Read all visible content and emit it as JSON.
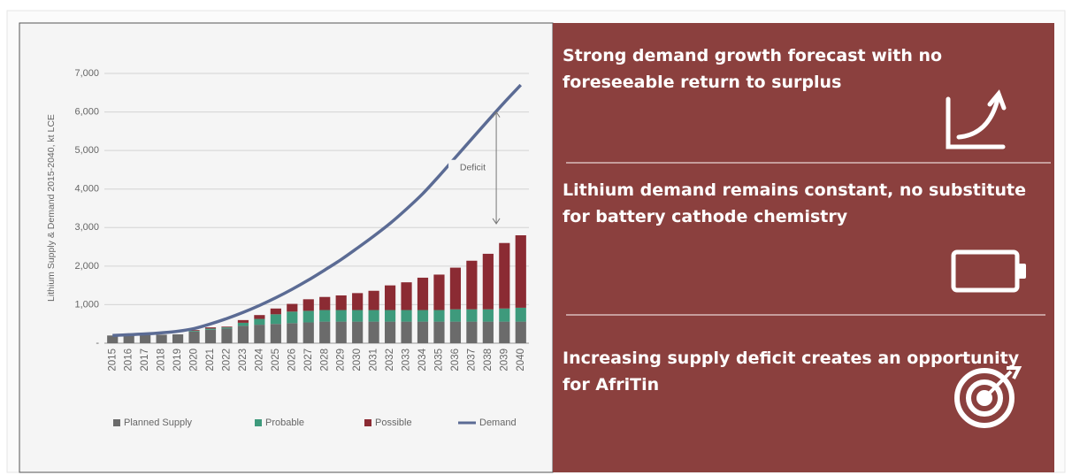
{
  "chart_data": {
    "type": "bar",
    "stacked": true,
    "y_label": "Lithium Supply & Demand 2015-2040, kt LCE",
    "categories": [
      "2015",
      "2016",
      "2017",
      "2018",
      "2019",
      "2020",
      "2021",
      "2022",
      "2023",
      "2024",
      "2025",
      "2026",
      "2027",
      "2028",
      "2029",
      "2030",
      "2031",
      "2032",
      "2033",
      "2034",
      "2035",
      "2036",
      "2037",
      "2038",
      "2039",
      "2040"
    ],
    "series": [
      {
        "name": "Planned Supply",
        "color": "#6b6b6b",
        "values": [
          200,
          200,
          210,
          220,
          230,
          300,
          350,
          380,
          450,
          480,
          500,
          520,
          540,
          560,
          560,
          560,
          560,
          560,
          560,
          560,
          560,
          560,
          560,
          560,
          560,
          560
        ]
      },
      {
        "name": "Probable",
        "color": "#3e9a7c",
        "values": [
          0,
          0,
          0,
          0,
          0,
          20,
          30,
          30,
          80,
          150,
          250,
          300,
          300,
          300,
          300,
          300,
          300,
          300,
          300,
          300,
          300,
          320,
          320,
          320,
          340,
          360
        ]
      },
      {
        "name": "Possible",
        "color": "#8b2b33",
        "values": [
          0,
          0,
          0,
          0,
          0,
          20,
          30,
          20,
          70,
          100,
          150,
          200,
          300,
          340,
          380,
          440,
          500,
          640,
          720,
          840,
          920,
          1080,
          1260,
          1440,
          1700,
          1880
        ]
      },
      {
        "name": "Demand",
        "type": "line",
        "color": "#5b6b94",
        "values": [
          200,
          220,
          240,
          270,
          310,
          380,
          500,
          640,
          800,
          980,
          1180,
          1400,
          1640,
          1900,
          2170,
          2470,
          2780,
          3110,
          3480,
          3880,
          4340,
          4820,
          5300,
          5780,
          6250,
          6700
        ]
      }
    ],
    "ylim": [
      0,
      7000
    ],
    "yticks": [
      {
        "value": 0,
        "label": "-"
      },
      {
        "value": 1000,
        "label": "1,000"
      },
      {
        "value": 2000,
        "label": "2,000"
      },
      {
        "value": 3000,
        "label": "3,000"
      },
      {
        "value": 4000,
        "label": "4,000"
      },
      {
        "value": 5000,
        "label": "5,000"
      },
      {
        "value": 6000,
        "label": "6,000"
      },
      {
        "value": 7000,
        "label": "7,000"
      }
    ],
    "grid": true,
    "legend": "bottom",
    "annotation": {
      "text": "Deficit",
      "x": "2038",
      "from": 3100,
      "to": 6000
    }
  },
  "panel": {
    "points": [
      "Strong demand growth forecast with no foreseeable return to surplus",
      "Lithium demand remains constant, no substitute for battery cathode chemistry",
      "Increasing supply deficit creates an opportunity for AfriTin"
    ]
  }
}
